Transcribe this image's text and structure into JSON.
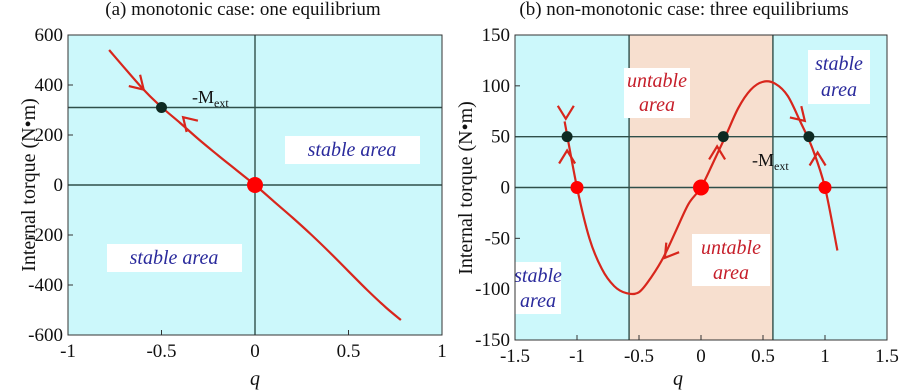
{
  "chart_data": [
    {
      "type": "line",
      "title": "(a) monotonic case: one equilibrium",
      "xlabel": "q",
      "ylabel": "Internal torque (N•m)",
      "xlim": [
        -1,
        1
      ],
      "ylim": [
        -600,
        600
      ],
      "xticks": [
        "-1",
        "-0.5",
        "0",
        "0.5",
        "1"
      ],
      "yticks": [
        "-600",
        "-400",
        "-200",
        "0",
        "200",
        "400",
        "600"
      ],
      "grid": false,
      "colors": {
        "background": "#ccf8fb",
        "curve": "#d8261c",
        "marker_eq": "#ff0000",
        "marker_black": "#0d2a22",
        "axis": "#2f4f4a"
      },
      "series": [
        {
          "x": [
            -0.78,
            -0.6,
            -0.5,
            -0.4,
            -0.3,
            -0.2,
            -0.1,
            0,
            0.1,
            0.2,
            0.3,
            0.4,
            0.5,
            0.6,
            0.7,
            0.78
          ],
          "y": [
            540,
            385,
            312,
            248,
            182,
            120,
            60,
            0,
            -65,
            -130,
            -198,
            -270,
            -345,
            -420,
            -490,
            -540
          ]
        }
      ],
      "reference_lines": {
        "horizontal": [
          0,
          310
        ],
        "vertical": [
          0
        ]
      },
      "points": [
        {
          "x": 0,
          "y": 0,
          "kind": "equilibrium"
        },
        {
          "x": -0.5,
          "y": 310,
          "kind": "intersection"
        }
      ],
      "arrows": [
        {
          "x": -0.62,
          "y": 400,
          "direction": "down-right"
        },
        {
          "x": -0.36,
          "y": 253,
          "direction": "up-left"
        }
      ],
      "annotations": {
        "mext_prefix": "-M",
        "mext_sub": "ext",
        "stable_right": "stable area",
        "stable_left": "stable area"
      }
    },
    {
      "type": "line",
      "title": "(b) non-monotonic case: three equilibriums",
      "xlabel": "q",
      "ylabel": "Internal torque (N•m)",
      "xlim": [
        -1.5,
        1.5
      ],
      "ylim": [
        -150,
        150
      ],
      "xticks": [
        "-1.5",
        "-1",
        "-0.5",
        "0",
        "0.5",
        "1",
        "1.5"
      ],
      "yticks": [
        "-150",
        "-100",
        "-50",
        "0",
        "50",
        "100",
        "150"
      ],
      "grid": false,
      "colors": {
        "background": "#ccf8fb",
        "unstable": "#f7dfcf",
        "curve": "#d8261c",
        "marker_eq": "#ff0000",
        "marker_black": "#0d2a22",
        "axis": "#2f4f4a"
      },
      "series": [
        {
          "x": [
            -1.1,
            -1.0,
            -0.9,
            -0.8,
            -0.7,
            -0.6,
            -0.5,
            -0.4,
            -0.3,
            -0.2,
            -0.1,
            0,
            0.1,
            0.2,
            0.3,
            0.4,
            0.5,
            0.6,
            0.7,
            0.8,
            0.9,
            1.0,
            1.1
          ],
          "y": [
            65,
            0,
            -50,
            -80,
            -97,
            -104,
            -103,
            -88,
            -68,
            -42,
            -16,
            0,
            25,
            51,
            78,
            96,
            104,
            102,
            90,
            65,
            38,
            0,
            -62
          ]
        }
      ],
      "reference_lines": {
        "horizontal": [
          0,
          50
        ],
        "vertical": [
          -0.58,
          0.58
        ]
      },
      "regions": [
        {
          "x": [
            -1.5,
            -0.58
          ],
          "label": "stable area"
        },
        {
          "x": [
            -0.58,
            0.58
          ],
          "label": "untable area"
        },
        {
          "x": [
            0.58,
            1.5
          ],
          "label": "stable area"
        }
      ],
      "points": [
        {
          "x": -1.0,
          "y": 0,
          "kind": "equilibrium"
        },
        {
          "x": 0,
          "y": 0,
          "kind": "equilibrium"
        },
        {
          "x": 1.0,
          "y": 0,
          "kind": "equilibrium"
        },
        {
          "x": -1.08,
          "y": 50,
          "kind": "intersection"
        },
        {
          "x": 0.18,
          "y": 50,
          "kind": "intersection"
        },
        {
          "x": 0.87,
          "y": 50,
          "kind": "intersection"
        }
      ],
      "arrows": [
        {
          "x": -1.09,
          "y": 74,
          "direction": "down"
        },
        {
          "x": -1.08,
          "y": 30,
          "direction": "up"
        },
        {
          "x": 0.13,
          "y": 34,
          "direction": "up"
        },
        {
          "x": -0.26,
          "y": -64,
          "direction": "down-left"
        },
        {
          "x": 0.8,
          "y": 70,
          "direction": "down-right"
        },
        {
          "x": 0.94,
          "y": 28,
          "direction": "up"
        }
      ],
      "annotations": {
        "mext_prefix": "-M",
        "mext_sub": "ext",
        "untable_top_line1": "untable",
        "untable_top_line2": "area",
        "untable_bottom_line1": "untable",
        "untable_bottom_line2": "area",
        "stable_right_line1": "stable",
        "stable_right_line2": "area",
        "stable_left_line1": "stable",
        "stable_left_line2": "area"
      }
    }
  ]
}
